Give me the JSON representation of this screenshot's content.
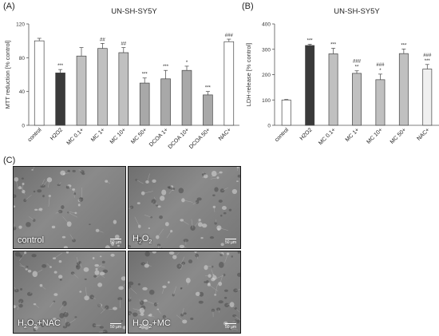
{
  "chart_data": [
    {
      "type": "bar",
      "panel_label": "(A)",
      "title": "UN-SH-SY5Y",
      "ylabel": "MTT reduction [% control]",
      "ylim": [
        0,
        120
      ],
      "yticks": [
        0,
        40,
        80,
        120
      ],
      "categories": [
        "control",
        "H2O2",
        "MC 0.1+",
        "MC 1+",
        "MC 10+",
        "MC 50+",
        "DCOA 1+",
        "DCOA 10+",
        "DCOA 50+",
        "NAC+"
      ],
      "values": [
        100,
        62,
        82,
        91,
        86,
        50,
        55,
        65,
        36,
        99
      ],
      "errors": [
        3,
        4,
        10,
        6,
        6,
        6,
        10,
        5,
        4,
        3
      ],
      "annotations": [
        "",
        "***",
        "",
        "##",
        "##",
        "***",
        "***",
        "*",
        "***",
        "###"
      ],
      "fills": [
        "#ffffff",
        "#3a3a3a",
        "#c0c0c0",
        "#c0c0c0",
        "#c0c0c0",
        "#a8a8a8",
        "#a8a8a8",
        "#a8a8a8",
        "#a8a8a8",
        "#ffffff"
      ]
    },
    {
      "type": "bar",
      "panel_label": "(B)",
      "title": "UN-SH-SY5Y",
      "ylabel": "LDH-release [% control]",
      "ylim": [
        0,
        400
      ],
      "yticks": [
        0,
        100,
        200,
        300,
        400
      ],
      "categories": [
        "control",
        "H2O2",
        "MC 0.1+",
        "MC 1+",
        "MC 10+",
        "MC 50+",
        "NAC+"
      ],
      "values": [
        100,
        315,
        282,
        205,
        180,
        283,
        222
      ],
      "errors": [
        2,
        5,
        22,
        10,
        22,
        18,
        18
      ],
      "annotations": [
        [
          ""
        ],
        [
          "***"
        ],
        [
          "***"
        ],
        [
          "###",
          "**"
        ],
        [
          "###",
          "*"
        ],
        [
          "***"
        ],
        [
          "###",
          "***"
        ]
      ],
      "fills": [
        "#ffffff",
        "#3a3a3a",
        "#c0c0c0",
        "#c0c0c0",
        "#c0c0c0",
        "#c0c0c0",
        "#f0f0f0"
      ]
    }
  ],
  "micrographs": {
    "panel_label": "(C)",
    "panels": [
      {
        "label": "control",
        "chem": false,
        "scale": "50 µm"
      },
      {
        "label_pre": "H",
        "label_sub": "2",
        "label_mid": "O",
        "label_sub2": "2",
        "label_post": "",
        "chem": true,
        "scale": "50 µm"
      },
      {
        "label_pre": "H",
        "label_sub": "2",
        "label_mid": "O",
        "label_sub2": "2",
        "label_post": "+NAC",
        "chem": true,
        "scale": "50 µm"
      },
      {
        "label_pre": "H",
        "label_sub": "2",
        "label_mid": "O",
        "label_sub2": "2",
        "label_post": "+MC",
        "chem": true,
        "scale": "50 µm"
      }
    ]
  }
}
